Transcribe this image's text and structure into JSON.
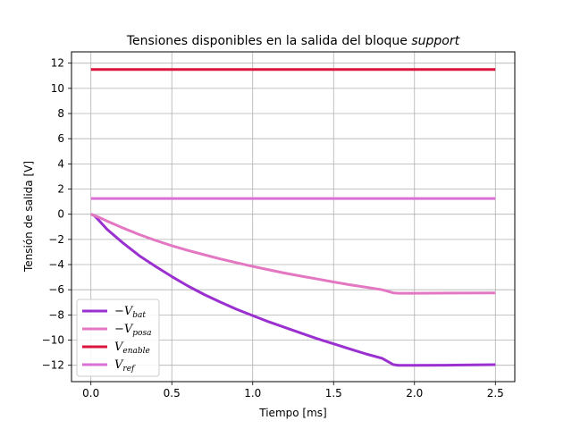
{
  "chart_data": {
    "type": "line",
    "title_main": "Tensiones disponibles en la salida del bloque ",
    "title_em": "support",
    "xlabel": "Tiempo [ms]",
    "ylabel": "Tensión de salida [V]",
    "xlim": [
      -0.12,
      2.62
    ],
    "ylim": [
      -13.3,
      12.9
    ],
    "xticks": [
      "0.0",
      "0.5",
      "1.0",
      "1.5",
      "2.0",
      "2.5"
    ],
    "xtick_values": [
      0.0,
      0.5,
      1.0,
      1.5,
      2.0,
      2.5
    ],
    "yticks": [
      "12",
      "10",
      "8",
      "6",
      "4",
      "2",
      "0",
      "−2",
      "−4",
      "−6",
      "−8",
      "−10",
      "−12"
    ],
    "ytick_values": [
      12,
      10,
      8,
      6,
      4,
      2,
      0,
      -2,
      -4,
      -6,
      -8,
      -10,
      -12
    ],
    "grid": true,
    "legend_position": "lower-left",
    "series": [
      {
        "name": "−V",
        "sub": "bat",
        "color": "#9b30d0",
        "points": [
          [
            0.0,
            0.0
          ],
          [
            0.02,
            -0.1
          ],
          [
            0.05,
            -0.5
          ],
          [
            0.1,
            -1.2
          ],
          [
            0.2,
            -2.3
          ],
          [
            0.3,
            -3.3
          ],
          [
            0.4,
            -4.15
          ],
          [
            0.5,
            -4.95
          ],
          [
            0.6,
            -5.7
          ],
          [
            0.7,
            -6.38
          ],
          [
            0.8,
            -6.98
          ],
          [
            0.9,
            -7.55
          ],
          [
            1.0,
            -8.05
          ],
          [
            1.1,
            -8.55
          ],
          [
            1.2,
            -9.0
          ],
          [
            1.3,
            -9.45
          ],
          [
            1.4,
            -9.9
          ],
          [
            1.5,
            -10.3
          ],
          [
            1.6,
            -10.7
          ],
          [
            1.7,
            -11.1
          ],
          [
            1.8,
            -11.45
          ],
          [
            1.87,
            -11.95
          ],
          [
            1.9,
            -12.0
          ],
          [
            2.0,
            -12.0
          ],
          [
            2.2,
            -11.99
          ],
          [
            2.5,
            -11.95
          ]
        ]
      },
      {
        "name": "−V",
        "sub": "posa",
        "color": "#e377c2",
        "points": [
          [
            0.0,
            0.0
          ],
          [
            0.05,
            -0.25
          ],
          [
            0.1,
            -0.55
          ],
          [
            0.2,
            -1.1
          ],
          [
            0.3,
            -1.62
          ],
          [
            0.4,
            -2.08
          ],
          [
            0.5,
            -2.5
          ],
          [
            0.6,
            -2.88
          ],
          [
            0.7,
            -3.22
          ],
          [
            0.8,
            -3.55
          ],
          [
            0.9,
            -3.85
          ],
          [
            1.0,
            -4.15
          ],
          [
            1.1,
            -4.42
          ],
          [
            1.2,
            -4.68
          ],
          [
            1.3,
            -4.92
          ],
          [
            1.4,
            -5.15
          ],
          [
            1.5,
            -5.38
          ],
          [
            1.6,
            -5.6
          ],
          [
            1.7,
            -5.8
          ],
          [
            1.8,
            -6.0
          ],
          [
            1.87,
            -6.25
          ],
          [
            1.9,
            -6.28
          ],
          [
            2.0,
            -6.28
          ],
          [
            2.5,
            -6.25
          ]
        ]
      },
      {
        "name": "V",
        "sub": "enable",
        "color": "#dc143c",
        "points": [
          [
            0.0,
            11.5
          ],
          [
            2.5,
            11.5
          ]
        ]
      },
      {
        "name": "V",
        "sub": "ref",
        "color": "#da70d6",
        "points": [
          [
            0.0,
            1.25
          ],
          [
            2.5,
            1.25
          ]
        ]
      }
    ]
  }
}
